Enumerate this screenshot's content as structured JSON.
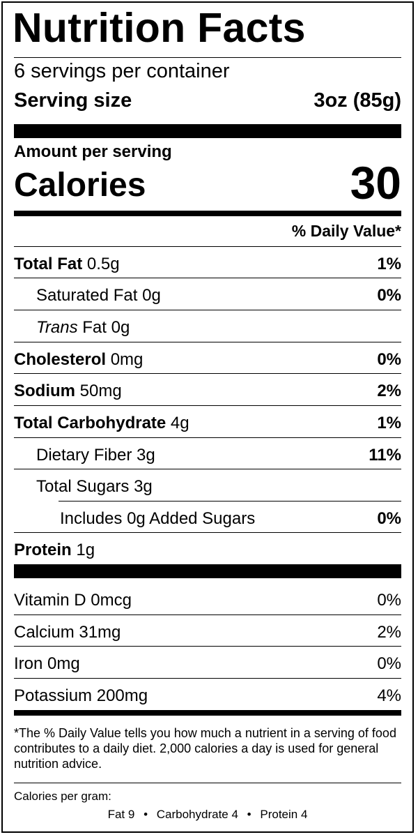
{
  "title": "Nutrition Facts",
  "servings_per_container": "6 servings per container",
  "serving_size": {
    "label": "Serving size",
    "value": "3oz (85g)"
  },
  "amount_per_serving": "Amount per serving",
  "calories": {
    "label": "Calories",
    "value": "30"
  },
  "daily_value_header": "% Daily Value*",
  "nutrients": [
    {
      "name": "Total Fat",
      "amount": "0.5g",
      "dv": "1%"
    },
    {
      "name": "Saturated Fat",
      "amount": "0g",
      "dv": "0%"
    },
    {
      "name": "Trans",
      "name_suffix": "Fat",
      "amount": "0g",
      "dv": ""
    },
    {
      "name": "Cholesterol",
      "amount": "0mg",
      "dv": "0%"
    },
    {
      "name": "Sodium",
      "amount": "50mg",
      "dv": "2%"
    },
    {
      "name": "Total Carbohydrate",
      "amount": "4g",
      "dv": "1%"
    },
    {
      "name": "Dietary Fiber",
      "amount": "3g",
      "dv": "11%"
    },
    {
      "name": "Total Sugars",
      "amount": "3g",
      "dv": ""
    },
    {
      "name": "Includes",
      "amount": "0g",
      "name_suffix": "Added Sugars",
      "dv": "0%"
    },
    {
      "name": "Protein",
      "amount": "1g",
      "dv": ""
    }
  ],
  "vitamins": [
    {
      "name": "Vitamin D",
      "amount": "0mcg",
      "dv": "0%"
    },
    {
      "name": "Calcium",
      "amount": "31mg",
      "dv": "2%"
    },
    {
      "name": "Iron",
      "amount": "0mg",
      "dv": "0%"
    },
    {
      "name": "Potassium",
      "amount": "200mg",
      "dv": "4%"
    }
  ],
  "footnote": "*The % Daily Value tells you how much a nutrient in a serving of food contributes to a daily diet. 2,000 calories a day is used for general nutrition advice.",
  "calories_per_gram": {
    "label": "Calories per gram:",
    "fat": "Fat 9",
    "separator": "•",
    "carbohydrate": "Carbohydrate 4",
    "protein": "Protein 4"
  }
}
